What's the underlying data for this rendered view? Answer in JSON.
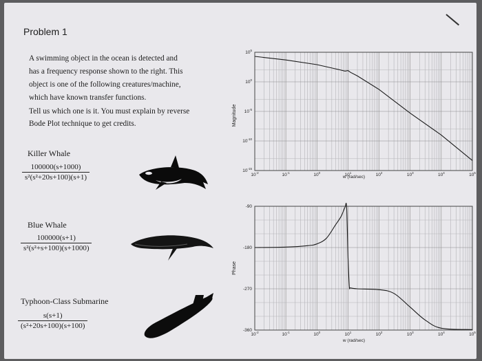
{
  "title": "Problem 1",
  "prompt_lines": [
    "A swimming object in the ocean is detected and",
    "has a frequency response shown to the right. This",
    "object is one of the following creatures/machine,",
    "which have known transfer functions.",
    "Tell us which one is it. You must explain by reverse",
    "Bode Plot technique to get credits."
  ],
  "options": [
    {
      "name": "Killer Whale",
      "numerator": "100000(s+1000)",
      "denominator": "s²(s²+20s+100)(s+1)"
    },
    {
      "name": "Blue Whale",
      "numerator": "100000(s+1)",
      "denominator": "s²(s²+s+100)(s+1000)"
    },
    {
      "name": "Typhoon-Class Submarine",
      "numerator": "s(s+1)",
      "denominator": "(s²+20s+100)(s+100)"
    }
  ],
  "magnitude_plot": {
    "ylabel": "Magnitude",
    "xlabel": "w (rad/sec)",
    "y_ticks": [
      {
        "base": "10",
        "exp": "5"
      },
      {
        "base": "10",
        "exp": "0"
      },
      {
        "base": "10",
        "exp": "-5"
      },
      {
        "base": "10",
        "exp": "-10"
      },
      {
        "base": "10",
        "exp": "-15"
      }
    ],
    "x_ticks": [
      {
        "base": "10",
        "exp": "-2"
      },
      {
        "base": "10",
        "exp": "-1"
      },
      {
        "base": "10",
        "exp": "0"
      },
      {
        "base": "10",
        "exp": "1"
      },
      {
        "base": "10",
        "exp": "2"
      },
      {
        "base": "10",
        "exp": "3"
      },
      {
        "base": "10",
        "exp": "4"
      },
      {
        "base": "10",
        "exp": "5"
      }
    ]
  },
  "phase_plot": {
    "ylabel": "Phase",
    "xlabel": "w (rad/sec)",
    "y_ticks": [
      "-90",
      "-180",
      "-270",
      "-360"
    ],
    "x_ticks": [
      {
        "base": "10",
        "exp": "-2"
      },
      {
        "base": "10",
        "exp": "-1"
      },
      {
        "base": "10",
        "exp": "0"
      },
      {
        "base": "10",
        "exp": "1"
      },
      {
        "base": "10",
        "exp": "2"
      },
      {
        "base": "10",
        "exp": "3"
      },
      {
        "base": "10",
        "exp": "4"
      },
      {
        "base": "10",
        "exp": "5"
      }
    ]
  },
  "chart_data": [
    {
      "type": "line",
      "x_scale": "log",
      "y_scale": "log",
      "xlabel": "w (rad/sec)",
      "ylabel": "Magnitude",
      "xlim": [
        0.01,
        100000
      ],
      "ylim": [
        1e-15,
        100000
      ],
      "grid": true,
      "series": [
        {
          "x": [
            0.01,
            0.1,
            1,
            5,
            8,
            10,
            12,
            20,
            100,
            1000,
            10000,
            100000
          ],
          "y": [
            20000,
            5000,
            800,
            120,
            65,
            80,
            40,
            10,
            0.05,
            5e-06,
            1e-09,
            5e-14
          ]
        }
      ]
    },
    {
      "type": "line",
      "x_scale": "log",
      "xlabel": "w (rad/sec)",
      "ylabel": "Phase",
      "xlim": [
        0.01,
        100000
      ],
      "ylim": [
        -360,
        -90
      ],
      "grid": true,
      "series": [
        {
          "x": [
            0.01,
            0.1,
            0.5,
            1,
            2,
            4,
            6,
            8,
            9,
            10,
            11,
            12,
            20,
            100,
            300,
            1000,
            3000,
            10000,
            100000
          ],
          "y": [
            -180,
            -179,
            -176,
            -172,
            -160,
            -130,
            -112,
            -92,
            -92,
            -200,
            -264,
            -268,
            -270,
            -272,
            -280,
            -310,
            -338,
            -356,
            -359
          ]
        }
      ]
    }
  ]
}
